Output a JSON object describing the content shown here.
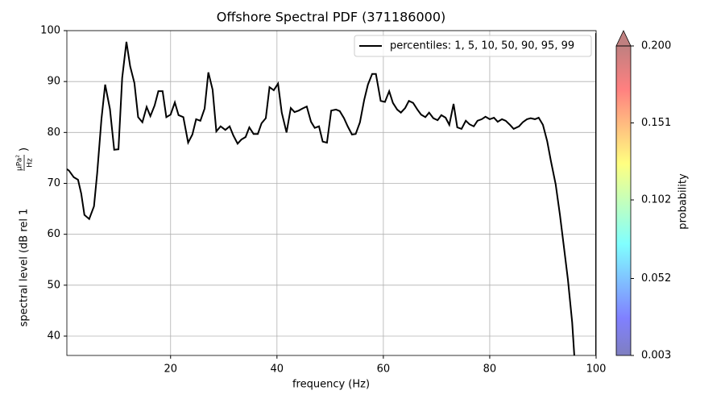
{
  "chart_data": {
    "type": "line",
    "title": "Offshore Spectral PDF (371186000)",
    "xlabel": "frequency (Hz)",
    "ylabel": {
      "text": "spectral level (dB rel 1",
      "unit_numerator": "µPa²",
      "unit_denominator": "Hz",
      "close": ")"
    },
    "xlim": [
      0.5,
      100
    ],
    "xticks": [
      20,
      40,
      60,
      80,
      100
    ],
    "ylim": [
      36.2,
      100
    ],
    "yticks": [
      40,
      50,
      60,
      70,
      80,
      90,
      100
    ],
    "grid": true,
    "legend": "upper right",
    "series": [
      {
        "name": "percentiles: 1, 5, 10, 50, 90, 95, 99",
        "color": "#000000",
        "x": [
          0.5,
          0.9,
          1.8,
          2.6,
          3.2,
          3.8,
          4.7,
          5.6,
          6.2,
          7.0,
          7.7,
          8.6,
          9.4,
          10.2,
          10.9,
          11.7,
          12.4,
          13.2,
          13.9,
          14.7,
          15.5,
          16.2,
          17.0,
          17.7,
          18.5,
          19.2,
          20.0,
          20.8,
          21.5,
          22.4,
          23.3,
          24.1,
          24.8,
          25.6,
          26.4,
          27.1,
          27.9,
          28.6,
          29.4,
          30.3,
          31.1,
          31.8,
          32.6,
          33.3,
          34.1,
          34.8,
          35.6,
          36.4,
          37.1,
          37.9,
          38.6,
          39.4,
          40.2,
          40.9,
          41.8,
          42.6,
          43.3,
          44.1,
          44.8,
          45.6,
          46.4,
          47.1,
          47.9,
          48.6,
          49.4,
          50.2,
          51.1,
          51.8,
          52.6,
          53.3,
          54.1,
          54.8,
          55.6,
          56.4,
          57.1,
          57.9,
          58.6,
          59.5,
          60.3,
          61.1,
          61.8,
          62.6,
          63.3,
          64.1,
          64.8,
          65.6,
          66.4,
          67.1,
          67.9,
          68.6,
          69.4,
          70.2,
          70.9,
          71.7,
          72.4,
          73.2,
          73.9,
          74.7,
          75.5,
          76.2,
          77.0,
          77.7,
          78.5,
          79.2,
          80.0,
          80.8,
          81.5,
          82.3,
          83.0,
          83.8,
          84.5,
          85.5,
          86.2,
          87.0,
          87.7,
          88.5,
          89.2,
          90.0,
          90.8,
          91.5,
          92.4,
          93.2,
          93.9,
          94.7,
          95.5,
          95.9,
          98,
          100,
          100
        ],
        "values": [
          72.8,
          72.5,
          71.2,
          70.7,
          68,
          63.8,
          63,
          65.5,
          72,
          82.6,
          89.4,
          84.6,
          76.6,
          76.7,
          90.7,
          97.8,
          93,
          89.7,
          83,
          82,
          85,
          83.2,
          85.3,
          88.1,
          88.1,
          83,
          83.5,
          85.9,
          83.4,
          83,
          78,
          79.6,
          82.6,
          82.3,
          84.7,
          91.8,
          88.4,
          80.2,
          81.2,
          80.5,
          81.2,
          79.4,
          77.8,
          78.6,
          79.1,
          81,
          79.7,
          79.7,
          81.8,
          82.8,
          88.9,
          88.3,
          89.6,
          83.9,
          80,
          84.8,
          84,
          84.3,
          84.7,
          85.1,
          82.1,
          80.9,
          81.2,
          78.2,
          78,
          84.3,
          84.5,
          84.2,
          82.8,
          81.2,
          79.6,
          79.7,
          82,
          86.4,
          89.4,
          91.5,
          91.5,
          86.2,
          86,
          88.1,
          85.8,
          84.5,
          83.9,
          84.8,
          86.2,
          85.8,
          84.5,
          83.5,
          83,
          83.9,
          82.8,
          82.4,
          83.4,
          82.9,
          81.5,
          85.6,
          81,
          80.7,
          82.3,
          81.6,
          81.2,
          82.3,
          82.6,
          83.1,
          82.6,
          82.9,
          82.1,
          82.6,
          82.3,
          81.5,
          80.7,
          81.2,
          82,
          82.6,
          82.8,
          82.6,
          82.9,
          81.5,
          78.3,
          74.4,
          69.8,
          63.8,
          57.9,
          51.1,
          42.7,
          36.2,
          null,
          36.2,
          99.5
        ]
      }
    ],
    "colorbar": {
      "label": "probability",
      "lim": [
        0.003,
        0.2
      ],
      "ticks": [
        0.003,
        0.052,
        0.102,
        0.151,
        {
          "value": 0.2,
          "label": "0.200"
        }
      ]
    }
  }
}
